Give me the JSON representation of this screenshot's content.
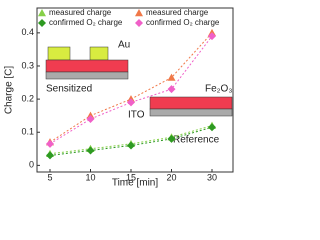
{
  "chart_data": {
    "type": "line",
    "x_label": "Time [min]",
    "y_label": "Charge [C]",
    "categories": [
      "5",
      "10",
      "15",
      "20",
      "30"
    ],
    "ylim": [
      -0.02,
      0.475
    ],
    "yticks": [
      0,
      0.1,
      0.2,
      0.3,
      0.4
    ],
    "series": [
      {
        "name": "measured charge",
        "color": "#86d048",
        "marker": "triangle",
        "values": [
          0.035,
          0.05,
          0.065,
          0.085,
          0.12
        ]
      },
      {
        "name": "measured charge",
        "color": "#f07848",
        "marker": "triangle",
        "values": [
          0.07,
          0.15,
          0.2,
          0.265,
          0.4
        ]
      },
      {
        "name": "confirmed O₂ charge",
        "color": "#2e9a22",
        "marker": "diamond",
        "values": [
          0.03,
          0.045,
          0.06,
          0.08,
          0.115
        ]
      },
      {
        "name": "confirmed O₂ charge",
        "color": "#f060c8",
        "marker": "diamond",
        "values": [
          0.065,
          0.14,
          0.19,
          0.23,
          0.39
        ]
      }
    ],
    "annotations": [
      "Au",
      "Sensitized",
      "Fe₂O₃",
      "ITO",
      "Reference"
    ]
  }
}
